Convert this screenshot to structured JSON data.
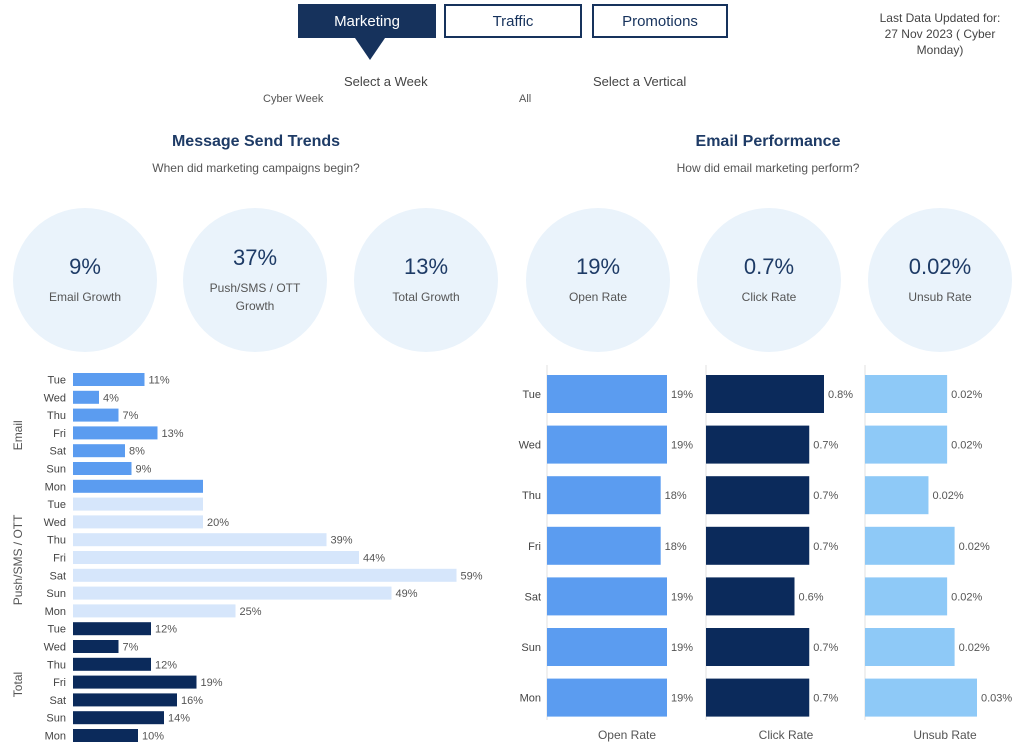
{
  "tabs": [
    {
      "label": "Marketing",
      "active": true
    },
    {
      "label": "Traffic",
      "active": false
    },
    {
      "label": "Promotions",
      "active": false
    }
  ],
  "updated": {
    "line1": "Last Data Updated for:",
    "line2": "27 Nov 2023 ( Cyber",
    "line3": "Monday)"
  },
  "filters": {
    "week_label": "Select a Week",
    "week_value": "Cyber Week",
    "vertical_label": "Select a Vertical",
    "vertical_value": "All"
  },
  "left_section": {
    "title": "Message Send Trends",
    "subtitle": "When did marketing campaigns begin?"
  },
  "right_section": {
    "title": "Email Performance",
    "subtitle": "How did email marketing perform?"
  },
  "kpis": [
    {
      "value": "9%",
      "label": "Email Growth"
    },
    {
      "value": "37%",
      "label": "Push/SMS / OTT Growth"
    },
    {
      "value": "13%",
      "label": "Total Growth"
    },
    {
      "value": "19%",
      "label": "Open Rate"
    },
    {
      "value": "0.7%",
      "label": "Click Rate"
    },
    {
      "value": "0.02%",
      "label": "Unsub Rate"
    }
  ],
  "colors": {
    "email": "#5b9cf0",
    "push": "#d6e6fb",
    "total": "#0b2a5b",
    "open": "#5b9cf0",
    "click": "#0b2a5b",
    "unsub": "#8ec9f7"
  },
  "chart_data": [
    {
      "type": "bar",
      "orientation": "horizontal",
      "title": "Message Send Trends",
      "categories": [
        "Tue",
        "Wed",
        "Thu",
        "Fri",
        "Sat",
        "Sun",
        "Mon"
      ],
      "series": [
        {
          "name": "Email",
          "values": [
            11,
            4,
            7,
            13,
            8,
            9,
            null
          ],
          "labels": [
            "11%",
            "4%",
            "7%",
            "13%",
            "8%",
            "9%",
            ""
          ]
        },
        {
          "name": "Push/SMS / OTT",
          "values": [
            null,
            20,
            39,
            44,
            59,
            49,
            25
          ],
          "labels": [
            "",
            "20%",
            "39%",
            "44%",
            "59%",
            "49%",
            "25%"
          ]
        },
        {
          "name": "Total",
          "values": [
            12,
            7,
            12,
            19,
            16,
            14,
            10
          ],
          "labels": [
            "12%",
            "7%",
            "12%",
            "19%",
            "16%",
            "14%",
            "10%"
          ]
        }
      ]
    },
    {
      "type": "bar",
      "orientation": "horizontal",
      "title": "Email Performance",
      "categories": [
        "Tue",
        "Wed",
        "Thu",
        "Fri",
        "Sat",
        "Sun",
        "Mon"
      ],
      "series": [
        {
          "name": "Open Rate",
          "values": [
            19,
            19,
            18,
            18,
            19,
            19,
            19
          ],
          "labels": [
            "19%",
            "19%",
            "18%",
            "18%",
            "19%",
            "19%",
            "19%"
          ]
        },
        {
          "name": "Click Rate",
          "values": [
            0.8,
            0.7,
            0.7,
            0.7,
            0.6,
            0.7,
            0.7
          ],
          "labels": [
            "0.8%",
            "0.7%",
            "0.7%",
            "0.7%",
            "0.6%",
            "0.7%",
            "0.7%"
          ]
        },
        {
          "name": "Unsub Rate",
          "values": [
            0.022,
            0.022,
            0.017,
            0.024,
            0.022,
            0.024,
            0.03
          ],
          "labels": [
            "0.02%",
            "0.02%",
            "0.02%",
            "0.02%",
            "0.02%",
            "0.02%",
            "0.03%"
          ]
        }
      ]
    }
  ]
}
